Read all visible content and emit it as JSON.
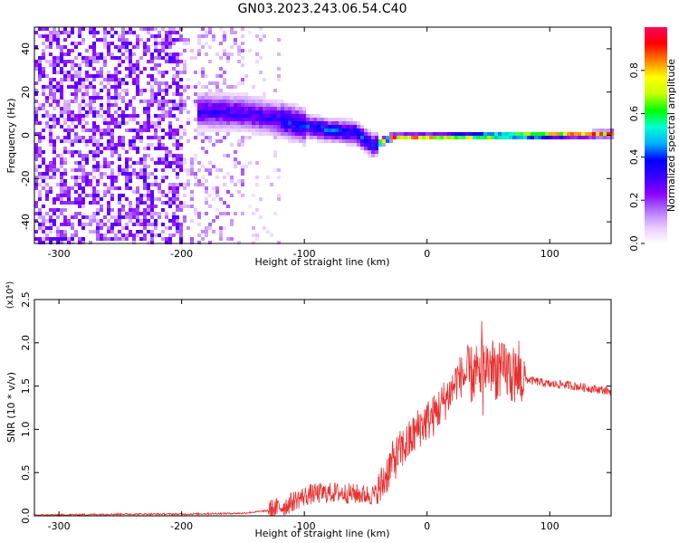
{
  "title": "GN03.2023.243.06.54.C40",
  "chart_data": [
    {
      "type": "heatmap",
      "xlabel": "Height of straight line (km)",
      "ylabel": "Frequency (Hz)",
      "xlim": [
        -320,
        150
      ],
      "ylim": [
        -50,
        50
      ],
      "xticks": [
        -300,
        -200,
        -100,
        0,
        100
      ],
      "yticks": [
        -40,
        -20,
        0,
        20,
        40
      ],
      "colorbar": {
        "label": "Normalized spectral amplitude",
        "range": [
          0,
          1
        ],
        "ticks": [
          0.0,
          0.2,
          0.4,
          0.6,
          0.8
        ],
        "tick_labels": [
          "0.0",
          "0.2",
          "0.4",
          "0.6",
          "0.8"
        ],
        "colormap": [
          "#ffffff",
          "#e8c8ff",
          "#b070ff",
          "#8a00ff",
          "#3a00ff",
          "#0000ff",
          "#00b0ff",
          "#00ffd0",
          "#00ff00",
          "#c8ff00",
          "#ffff00",
          "#ff8000",
          "#ff0000",
          "#ff0060"
        ]
      },
      "ridge": {
        "description_points": [
          {
            "x": -180,
            "y": 12
          },
          {
            "x": -150,
            "y": 11
          },
          {
            "x": -120,
            "y": 8
          },
          {
            "x": -100,
            "y": 5
          },
          {
            "x": -80,
            "y": 3
          },
          {
            "x": -60,
            "y": 2
          },
          {
            "x": -50,
            "y": -2
          },
          {
            "x": -45,
            "y": -4
          },
          {
            "x": -30,
            "y": 0
          },
          {
            "x": 0,
            "y": 0
          },
          {
            "x": 50,
            "y": 0.5
          },
          {
            "x": 100,
            "y": 1
          },
          {
            "x": 150,
            "y": 1.5
          }
        ]
      }
    },
    {
      "type": "line",
      "xlabel": "Height of straight line (km)",
      "ylabel": "SNR (10 * v/v)",
      "yscale_label": "(x10⁴)",
      "xlim": [
        -320,
        150
      ],
      "ylim": [
        0,
        2.5
      ],
      "xticks": [
        -300,
        -200,
        -100,
        0,
        100
      ],
      "yticks": [
        0.0,
        0.5,
        1.0,
        1.5,
        2.0,
        2.5
      ],
      "ytick_labels": [
        "0.0",
        "0.5",
        "1.0",
        "1.5",
        "2.0",
        "2.5"
      ],
      "color": "#e83030",
      "series": [
        {
          "x": [
            -320,
            -300,
            -250,
            -200,
            -150,
            -130,
            -115,
            -105,
            -95,
            -85,
            -75,
            -65,
            -55,
            -45,
            -40,
            -35,
            -30,
            -25,
            -20,
            -15,
            -10,
            -5,
            0,
            5,
            10,
            15,
            20,
            25,
            30,
            35,
            40,
            45,
            50,
            55,
            60,
            65,
            70,
            80,
            90,
            100,
            110,
            120,
            130,
            140,
            150
          ],
          "y": [
            0.01,
            0.01,
            0.02,
            0.02,
            0.03,
            0.06,
            0.12,
            0.2,
            0.25,
            0.26,
            0.27,
            0.26,
            0.25,
            0.24,
            0.26,
            0.42,
            0.58,
            0.68,
            0.78,
            0.85,
            0.95,
            1.05,
            1.1,
            1.15,
            1.25,
            1.35,
            1.45,
            1.6,
            1.62,
            1.62,
            1.65,
            1.7,
            1.75,
            1.7,
            1.65,
            1.68,
            1.62,
            1.58,
            1.55,
            1.52,
            1.52,
            1.5,
            1.48,
            1.46,
            1.44
          ]
        }
      ]
    }
  ]
}
